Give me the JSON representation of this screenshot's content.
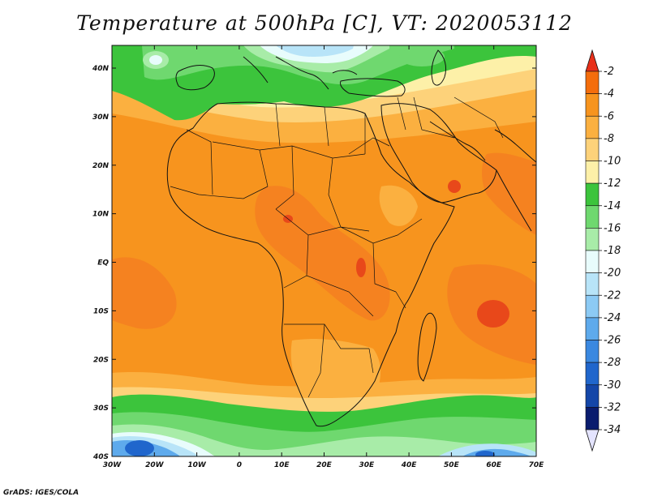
{
  "title": "Temperature at 500hPa [C], VT: 2020053112",
  "credit": "GrADS: IGES/COLA",
  "lon_ticks": [
    "30W",
    "20W",
    "10W",
    "0",
    "10E",
    "20E",
    "30E",
    "40E",
    "50E",
    "60E",
    "70E"
  ],
  "lat_ticks": [
    "40N",
    "30N",
    "20N",
    "10N",
    "EQ",
    "10S",
    "20S",
    "30S",
    "40S"
  ],
  "colorbar": {
    "labels": [
      "-2",
      "-4",
      "-6",
      "-8",
      "-10",
      "-12",
      "-14",
      "-16",
      "-18",
      "-20",
      "-22",
      "-24",
      "-26",
      "-28",
      "-30",
      "-32",
      "-34"
    ],
    "colors": [
      "#e8481a",
      "#f46d0c",
      "#f7941e",
      "#fbb040",
      "#fdd27a",
      "#fdf0a8",
      "#3cc43c",
      "#6fd86f",
      "#a8eca8",
      "#e8fcfc",
      "#b8e4f8",
      "#8ccaf4",
      "#5eaaec",
      "#3a88e0",
      "#2066cc",
      "#1446a8",
      "#0a1c6e"
    ],
    "top_arrow": "#e8301a",
    "bottom_arrow": "#e4e4ff"
  },
  "palette": {
    "deep_orange": "#f58220",
    "orange": "#f7941e",
    "light_orange": "#fbb040",
    "tan": "#fdd27a",
    "pale_yellow": "#fdf0a8",
    "green": "#3cc43c",
    "light_green": "#6fd86f",
    "pale_green": "#a8eca8",
    "pale_cyan": "#e8fcfc",
    "light_blue": "#b8e4f8",
    "blue": "#5eaaec",
    "dark_blue": "#2066cc",
    "red": "#e8481a"
  }
}
